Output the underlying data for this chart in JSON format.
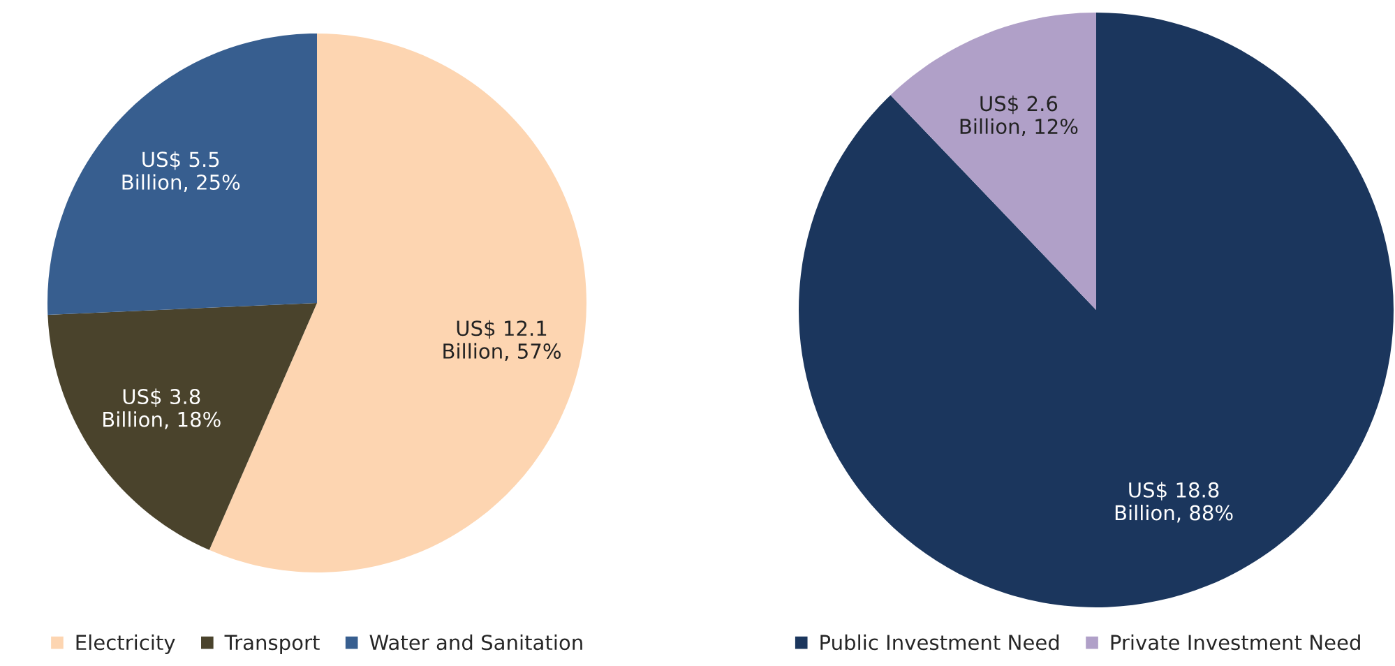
{
  "chart_data": [
    {
      "type": "pie",
      "categories": [
        "Electricity",
        "Transport",
        "Water and Sanitation"
      ],
      "values": [
        12.1,
        3.8,
        5.5
      ],
      "colors": [
        "#fdd5b1",
        "#4a432c",
        "#375e8f"
      ],
      "value_labels": [
        "US$ 12.1\nBillion, 57%",
        "US$ 3.8\nBillion, 18%",
        "US$ 5.5\nBillion, 25%"
      ],
      "legend": "bottom"
    },
    {
      "type": "pie",
      "categories": [
        "Public Investment Need",
        "Private Investment Need"
      ],
      "values": [
        18.8,
        2.6
      ],
      "colors": [
        "#1b365d",
        "#b0a0c8"
      ],
      "value_labels": [
        "US$ 18.8\nBillion, 88%",
        "US$ 2.6\nBillion, 12%"
      ],
      "legend": "bottom"
    }
  ]
}
